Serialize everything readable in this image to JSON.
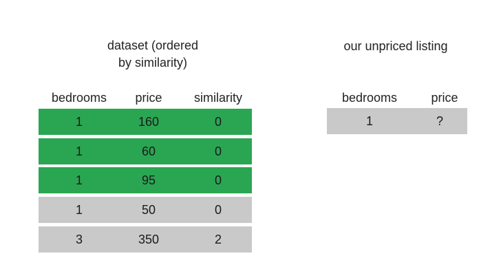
{
  "dataset_panel": {
    "title_line1": "dataset (ordered",
    "title_line2": "by similarity)",
    "headers": {
      "bedrooms": "bedrooms",
      "price": "price",
      "similarity": "similarity"
    },
    "rows": [
      {
        "bedrooms": "1",
        "price": "160",
        "similarity": "0",
        "highlighted": true
      },
      {
        "bedrooms": "1",
        "price": "60",
        "similarity": "0",
        "highlighted": true
      },
      {
        "bedrooms": "1",
        "price": "95",
        "similarity": "0",
        "highlighted": true
      },
      {
        "bedrooms": "1",
        "price": "50",
        "similarity": "0",
        "highlighted": false
      },
      {
        "bedrooms": "3",
        "price": "350",
        "similarity": "2",
        "highlighted": false
      }
    ]
  },
  "listing_panel": {
    "title": "our unpriced listing",
    "headers": {
      "bedrooms": "bedrooms",
      "price": "price"
    },
    "row": {
      "bedrooms": "1",
      "price": "?"
    }
  },
  "colors": {
    "highlighted_row": "#2aa653",
    "plain_row": "#c9c9c9"
  }
}
